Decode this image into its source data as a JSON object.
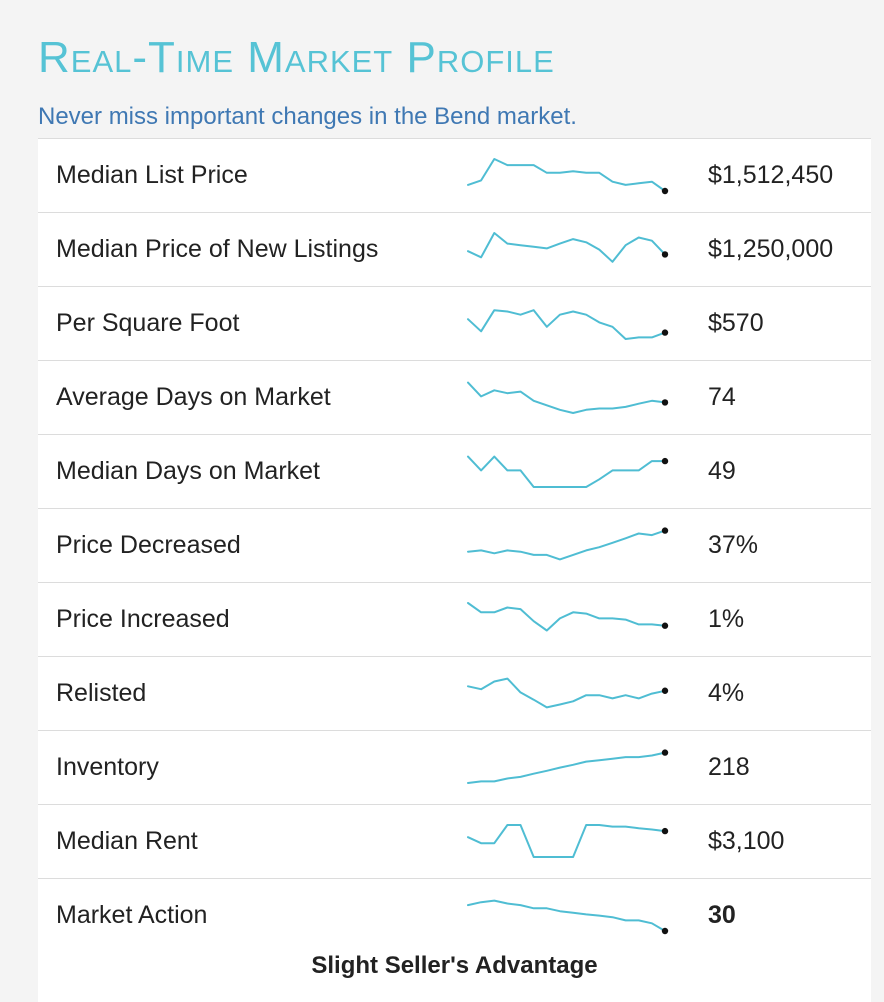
{
  "header": {
    "title": "Real-Time Market Profile",
    "subtitle": "Never miss important changes in the Bend market."
  },
  "colors": {
    "title": "#56c3d5",
    "subtitle": "#3f78b3",
    "sparkline": "#4fbdd3",
    "endpoint": "#111111"
  },
  "rows": [
    {
      "label": "Median List Price",
      "value": "$1,512,450",
      "bold": false,
      "trend": [
        0.19,
        0.33,
        1.0,
        0.81,
        0.81,
        0.81,
        0.57,
        0.57,
        0.62,
        0.57,
        0.57,
        0.29,
        0.19,
        0.24,
        0.29,
        0.0
      ]
    },
    {
      "label": "Median Price of New Listings",
      "value": "$1,250,000",
      "bold": false,
      "trend": [
        0.43,
        0.24,
        1.0,
        0.67,
        0.62,
        0.57,
        0.52,
        0.67,
        0.81,
        0.71,
        0.48,
        0.1,
        0.62,
        0.86,
        0.76,
        0.33
      ]
    },
    {
      "label": "Per Square Foot",
      "value": "$570",
      "bold": false,
      "trend": [
        0.62,
        0.24,
        0.9,
        0.86,
        0.76,
        0.9,
        0.38,
        0.76,
        0.86,
        0.76,
        0.52,
        0.38,
        0.0,
        0.05,
        0.05,
        0.2
      ]
    },
    {
      "label": "Average Days on Market",
      "value": "74",
      "bold": false,
      "trend": [
        0.95,
        0.52,
        0.71,
        0.62,
        0.67,
        0.38,
        0.24,
        0.1,
        0.0,
        0.1,
        0.14,
        0.14,
        0.19,
        0.29,
        0.38,
        0.33
      ]
    },
    {
      "label": "Median Days on Market",
      "value": "49",
      "bold": false,
      "trend": [
        0.95,
        0.52,
        0.95,
        0.52,
        0.52,
        0.0,
        0.0,
        0.0,
        0.0,
        0.0,
        0.24,
        0.52,
        0.52,
        0.52,
        0.81,
        0.81
      ]
    },
    {
      "label": "Price Decreased",
      "value": "37%",
      "bold": false,
      "trend": [
        0.29,
        0.33,
        0.24,
        0.33,
        0.29,
        0.19,
        0.19,
        0.05,
        0.19,
        0.33,
        0.43,
        0.57,
        0.71,
        0.86,
        0.81,
        0.95
      ]
    },
    {
      "label": "Price Increased",
      "value": "1%",
      "bold": false,
      "trend": [
        1.0,
        0.71,
        0.71,
        0.86,
        0.81,
        0.43,
        0.14,
        0.52,
        0.71,
        0.67,
        0.52,
        0.52,
        0.48,
        0.33,
        0.33,
        0.29
      ]
    },
    {
      "label": "Relisted",
      "value": "4%",
      "bold": false,
      "trend": [
        0.71,
        0.62,
        0.86,
        0.95,
        0.52,
        0.29,
        0.05,
        0.14,
        0.24,
        0.43,
        0.43,
        0.33,
        0.43,
        0.33,
        0.48,
        0.57
      ]
    },
    {
      "label": "Inventory",
      "value": "218",
      "bold": false,
      "trend": [
        0.0,
        0.05,
        0.05,
        0.14,
        0.19,
        0.29,
        0.38,
        0.48,
        0.57,
        0.67,
        0.71,
        0.76,
        0.81,
        0.81,
        0.86,
        0.95
      ]
    },
    {
      "label": "Median Rent",
      "value": "$3,100",
      "bold": false,
      "trend": [
        0.62,
        0.43,
        0.43,
        1.0,
        1.0,
        0.0,
        0.0,
        0.0,
        0.0,
        1.0,
        1.0,
        0.95,
        0.95,
        0.9,
        0.86,
        0.81
      ]
    },
    {
      "label": "Market Action",
      "value": "30",
      "bold": true,
      "caption": "Slight Seller's Advantage",
      "trend": [
        0.81,
        0.9,
        0.95,
        0.86,
        0.81,
        0.71,
        0.71,
        0.62,
        0.57,
        0.52,
        0.48,
        0.43,
        0.33,
        0.33,
        0.24,
        0.0
      ]
    }
  ]
}
